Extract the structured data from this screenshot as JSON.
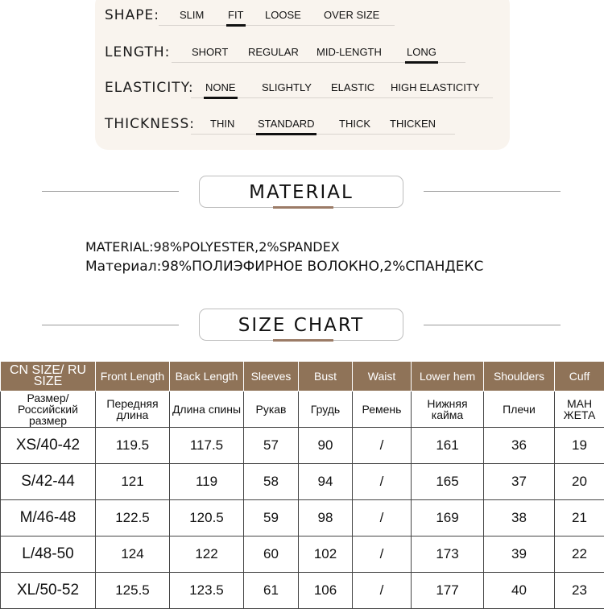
{
  "attributes": [
    {
      "label": "SHAPE:",
      "options": [
        "SLIM",
        "FIT",
        "LOOSE",
        "OVER SIZE"
      ],
      "selected": 1
    },
    {
      "label": "LENGTH:",
      "options": [
        "SHORT",
        "REGULAR",
        "MID-LENGTH",
        "LONG"
      ],
      "selected": 3
    },
    {
      "label": "ELASTICITY:",
      "options": [
        "NONE",
        "SLIGHTLY",
        "ELASTIC",
        "HIGH ELASTICITY"
      ],
      "selected": 0
    },
    {
      "label": "THICKNESS:",
      "options": [
        "THIN",
        "STANDARD",
        "THICK",
        "THICKEN"
      ],
      "selected": 1
    }
  ],
  "material_title": "MATERIAL",
  "material": {
    "en_label": "MATERIAL:",
    "en_value": "98%POLYESTER,2%SPANDEX",
    "ru_label": "Материал:",
    "ru_value": "98%ПОЛИЭФИРНОЕ ВОЛОКНО,2%СПАНДЕКС"
  },
  "size_title": "SIZE CHART",
  "table": {
    "headers": [
      "CN SIZE/ RU SIZE",
      "Front Length",
      "Back Length",
      "Sleeves",
      "Bust",
      "Waist",
      "Lower hem",
      "Shoulders",
      "Cuff"
    ],
    "headers_ru": [
      "Размер/ Российский размер",
      "Передняя длина",
      "Длина спины",
      "Рукав",
      "Грудь",
      "Ремень",
      "Нижняя кайма",
      "Плечи",
      "МАН ЖЕТА"
    ],
    "rows": [
      [
        "XS/40-42",
        "119.5",
        "117.5",
        "57",
        "90",
        "/",
        "161",
        "36",
        "19"
      ],
      [
        "S/42-44",
        "121",
        "119",
        "58",
        "94",
        "/",
        "165",
        "37",
        "20"
      ],
      [
        "M/46-48",
        "122.5",
        "120.5",
        "59",
        "98",
        "/",
        "169",
        "38",
        "21"
      ],
      [
        "L/48-50",
        "124",
        "122",
        "60",
        "102",
        "/",
        "173",
        "39",
        "22"
      ],
      [
        "XL/50-52",
        "125.5",
        "123.5",
        "61",
        "106",
        "/",
        "177",
        "40",
        "23"
      ]
    ]
  },
  "colors": {
    "header_bg": "#8f7358",
    "card_bg": "#f9f4ee",
    "accent": "#9b7b66"
  }
}
